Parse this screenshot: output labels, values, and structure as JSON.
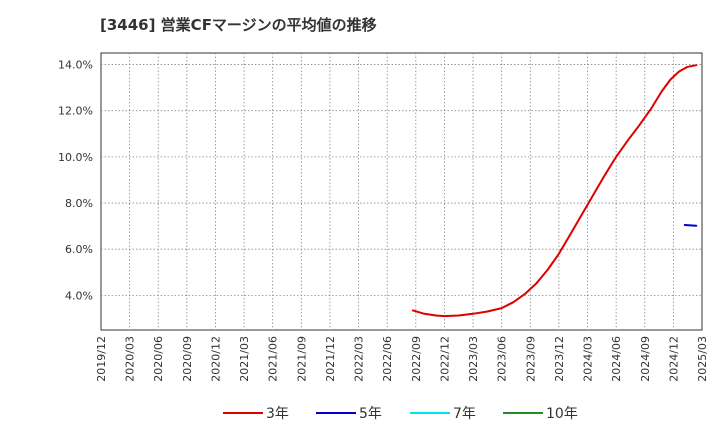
{
  "chart_data": {
    "type": "line",
    "title": "[3446]  営業CFマージンの平均値の推移",
    "xlabel": "",
    "ylabel": "",
    "ylim": [
      2.5,
      14.5
    ],
    "yticks": [
      4.0,
      6.0,
      8.0,
      10.0,
      12.0,
      14.0
    ],
    "ytick_labels": [
      "4.0%",
      "6.0%",
      "8.0%",
      "10.0%",
      "12.0%",
      "14.0%"
    ],
    "x_categories": [
      "2019/12",
      "2020/03",
      "2020/06",
      "2020/09",
      "2020/12",
      "2021/03",
      "2021/06",
      "2021/09",
      "2021/12",
      "2022/03",
      "2022/06",
      "2022/09",
      "2022/12",
      "2023/03",
      "2023/06",
      "2023/09",
      "2023/12",
      "2024/03",
      "2024/06",
      "2024/09",
      "2024/12",
      "2025/03"
    ],
    "grid": true,
    "legend_position": "bottom",
    "series": [
      {
        "name": "3年",
        "color": "#dd0000",
        "points": [
          [
            10.9,
            3.35
          ],
          [
            11.3,
            3.2
          ],
          [
            11.7,
            3.13
          ],
          [
            12.0,
            3.1
          ],
          [
            12.5,
            3.13
          ],
          [
            13.0,
            3.2
          ],
          [
            13.5,
            3.3
          ],
          [
            14.0,
            3.45
          ],
          [
            14.4,
            3.7
          ],
          [
            14.8,
            4.05
          ],
          [
            15.2,
            4.5
          ],
          [
            15.6,
            5.1
          ],
          [
            16.0,
            5.8
          ],
          [
            16.4,
            6.65
          ],
          [
            16.8,
            7.5
          ],
          [
            17.2,
            8.35
          ],
          [
            17.6,
            9.2
          ],
          [
            18.0,
            10.0
          ],
          [
            18.4,
            10.7
          ],
          [
            18.8,
            11.35
          ],
          [
            19.2,
            12.05
          ],
          [
            19.6,
            12.85
          ],
          [
            19.9,
            13.35
          ],
          [
            20.2,
            13.7
          ],
          [
            20.5,
            13.9
          ],
          [
            20.8,
            13.97
          ]
        ]
      },
      {
        "name": "5年",
        "color": "#0000cc",
        "points": [
          [
            20.4,
            7.05
          ],
          [
            20.8,
            7.02
          ]
        ]
      },
      {
        "name": "7年",
        "color": "#00e5ee",
        "points": []
      },
      {
        "name": "10年",
        "color": "#228b22",
        "points": []
      }
    ]
  }
}
